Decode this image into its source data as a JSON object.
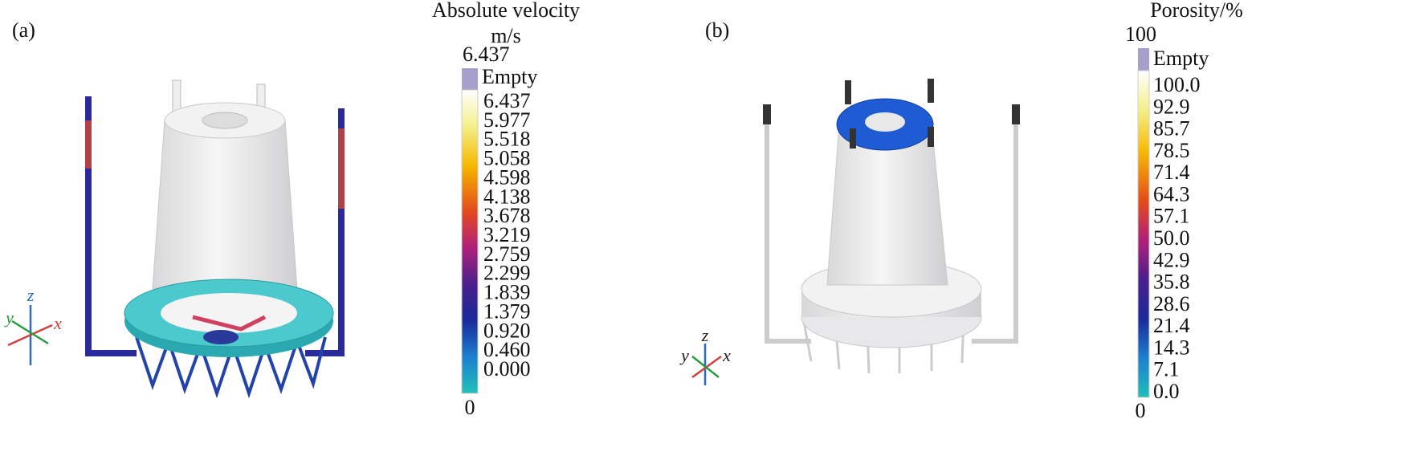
{
  "panels": [
    {
      "label": "(a)",
      "colorbar": {
        "title": "Absolute velocity",
        "unit": "m/s",
        "max": "6.437",
        "empty": "Empty",
        "ticks": [
          "6.437",
          "5.977",
          "5.518",
          "5.058",
          "4.598",
          "4.138",
          "3.678",
          "3.219",
          "2.759",
          "2.299",
          "1.839",
          "1.379",
          "0.920",
          "0.460",
          "0.000"
        ],
        "min": "0"
      },
      "axes": {
        "x": "x",
        "y": "y",
        "z": "z"
      }
    },
    {
      "label": "(b)",
      "colorbar": {
        "title": "Porosity/%",
        "max": "100",
        "empty": "Empty",
        "ticks": [
          "100.0",
          "92.9",
          "85.7",
          "78.5",
          "71.4",
          "64.3",
          "57.1",
          "50.0",
          "42.9",
          "35.8",
          "28.6",
          "21.4",
          "14.3",
          "7.1",
          "0.0"
        ],
        "min": "0"
      },
      "axes": {
        "x": "x",
        "y": "y",
        "z": "z"
      }
    }
  ]
}
